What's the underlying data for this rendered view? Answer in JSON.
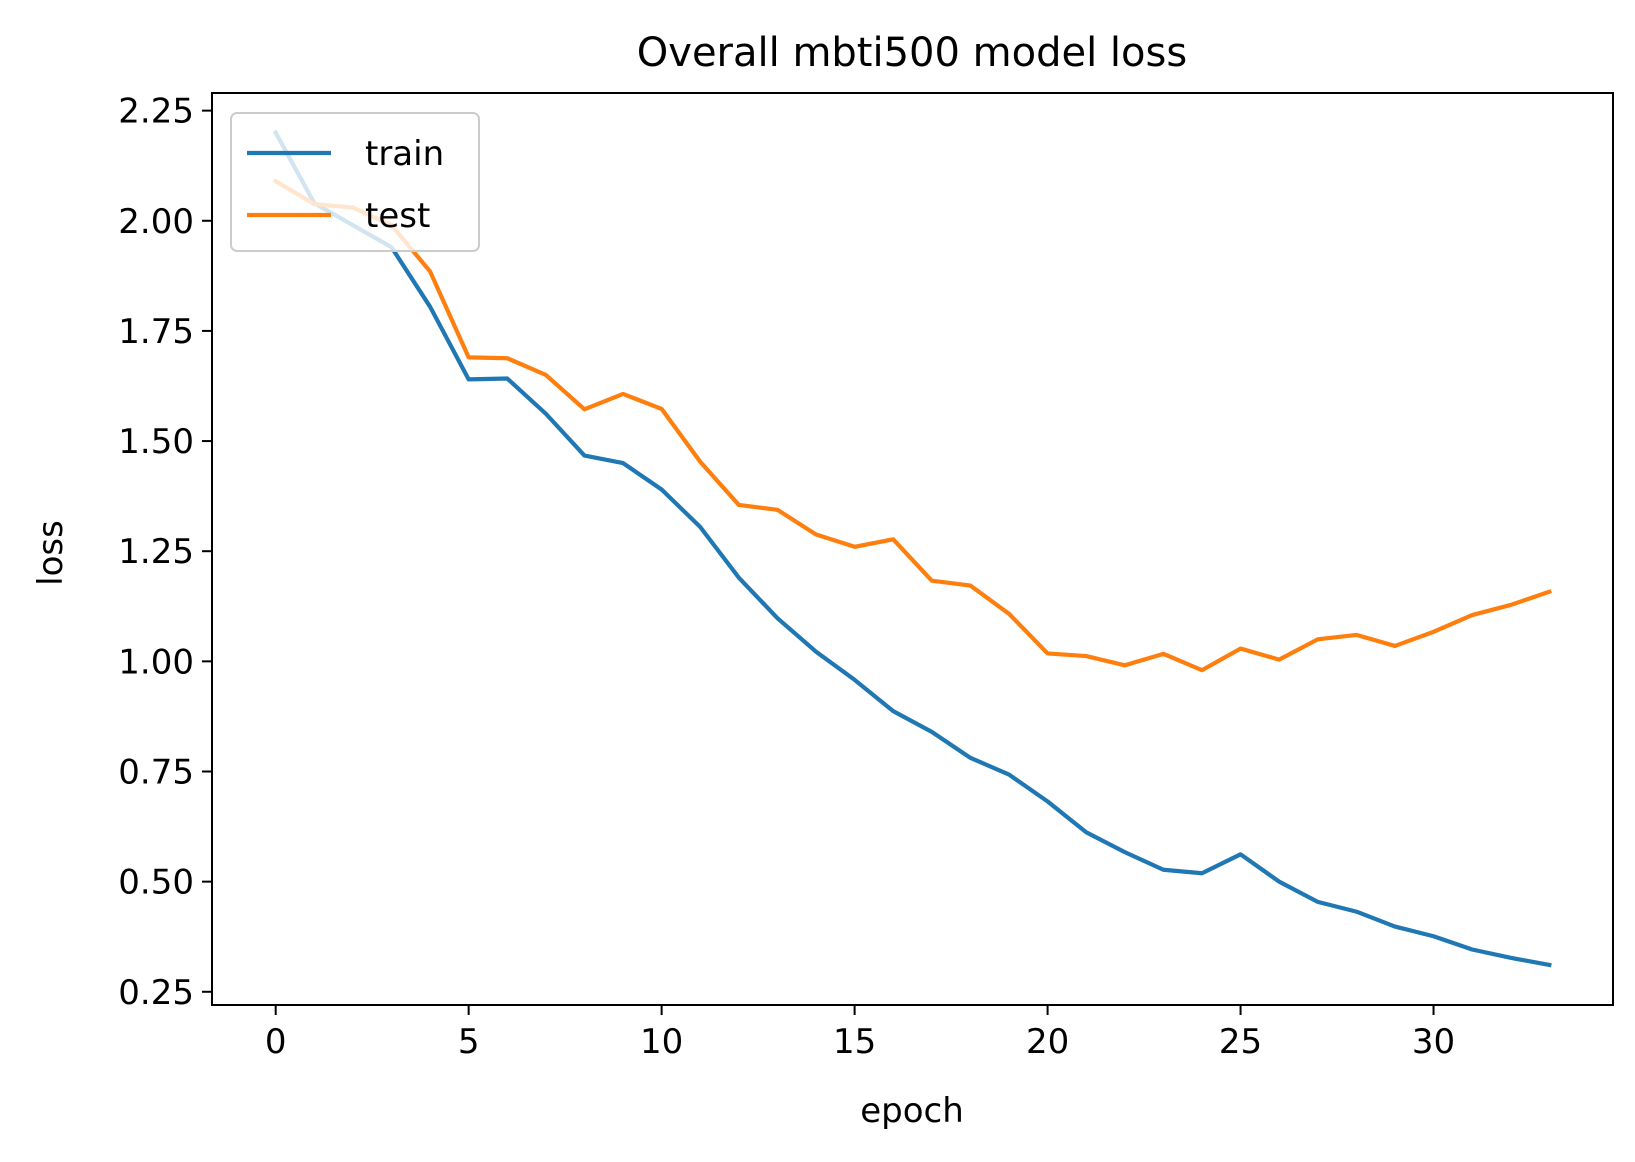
{
  "chart_data": {
    "type": "line",
    "title": "Overall mbti500 model loss",
    "xlabel": "epoch",
    "ylabel": "loss",
    "xlim": [
      -1.65,
      34.65
    ],
    "ylim": [
      0.22,
      2.29
    ],
    "xticks": [
      0,
      5,
      10,
      15,
      20,
      25,
      30
    ],
    "xtick_labels": [
      "0",
      "5",
      "10",
      "15",
      "20",
      "25",
      "30"
    ],
    "yticks": [
      0.25,
      0.5,
      0.75,
      1.0,
      1.25,
      1.5,
      1.75,
      2.0,
      2.25
    ],
    "ytick_labels": [
      "0.25",
      "0.50",
      "0.75",
      "1.00",
      "1.25",
      "1.50",
      "1.75",
      "2.00",
      "2.25"
    ],
    "grid": false,
    "legend_position": "upper-left",
    "x": [
      0,
      1,
      2,
      3,
      4,
      5,
      6,
      7,
      8,
      9,
      10,
      11,
      12,
      13,
      14,
      15,
      16,
      17,
      18,
      19,
      20,
      21,
      22,
      23,
      24,
      25,
      26,
      27,
      28,
      29,
      30,
      31,
      32,
      33
    ],
    "series": [
      {
        "name": "train",
        "color": "#1f77b4",
        "values": [
          2.2,
          2.04,
          1.99,
          1.94,
          1.805,
          1.64,
          1.642,
          1.562,
          1.467,
          1.45,
          1.39,
          1.305,
          1.19,
          1.098,
          1.022,
          0.958,
          0.887,
          0.84,
          0.781,
          0.743,
          0.682,
          0.612,
          0.567,
          0.527,
          0.519,
          0.562,
          0.5,
          0.454,
          0.432,
          0.398,
          0.376,
          0.346,
          0.327,
          0.311
        ]
      },
      {
        "name": "test",
        "color": "#ff7f0e",
        "values": [
          2.09,
          2.038,
          2.03,
          1.99,
          1.885,
          1.69,
          1.688,
          1.65,
          1.572,
          1.607,
          1.573,
          1.453,
          1.355,
          1.344,
          1.288,
          1.26,
          1.277,
          1.183,
          1.172,
          1.108,
          1.018,
          1.012,
          0.991,
          1.017,
          0.98,
          1.029,
          1.004,
          1.05,
          1.06,
          1.035,
          1.067,
          1.105,
          1.128,
          1.158
        ]
      }
    ]
  }
}
